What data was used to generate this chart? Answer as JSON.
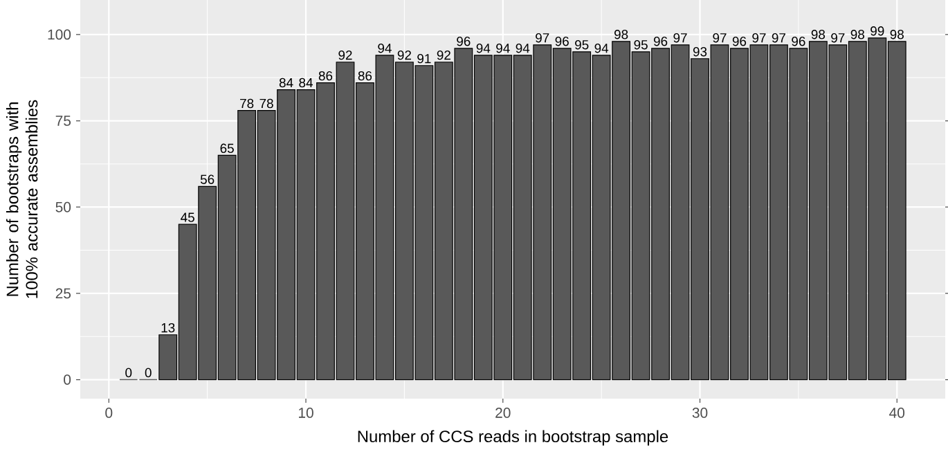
{
  "chart_data": {
    "type": "bar",
    "xlabel": "Number of CCS reads in bootstrap sample",
    "ylabel": "Number of bootstraps with 100% accurate assemblies",
    "x": [
      1,
      2,
      3,
      4,
      5,
      6,
      7,
      8,
      9,
      10,
      11,
      12,
      13,
      14,
      15,
      16,
      17,
      18,
      19,
      20,
      21,
      22,
      23,
      24,
      25,
      26,
      27,
      28,
      29,
      30,
      31,
      32,
      33,
      34,
      35,
      36,
      37,
      38,
      39,
      40
    ],
    "values": [
      0,
      0,
      13,
      45,
      56,
      65,
      78,
      78,
      84,
      84,
      86,
      92,
      86,
      94,
      92,
      91,
      92,
      96,
      94,
      94,
      94,
      97,
      96,
      95,
      94,
      98,
      95,
      96,
      97,
      93,
      97,
      96,
      97,
      97,
      96,
      98,
      97,
      98,
      99,
      98
    ],
    "color": "#595959",
    "xlim": [
      -1.45,
      42.45
    ],
    "ylim": [
      -5.5,
      110
    ],
    "xticks": [
      0,
      10,
      20,
      30,
      40
    ],
    "yticks": [
      0,
      25,
      50,
      75,
      100
    ],
    "grid": true,
    "data_labels": true
  }
}
